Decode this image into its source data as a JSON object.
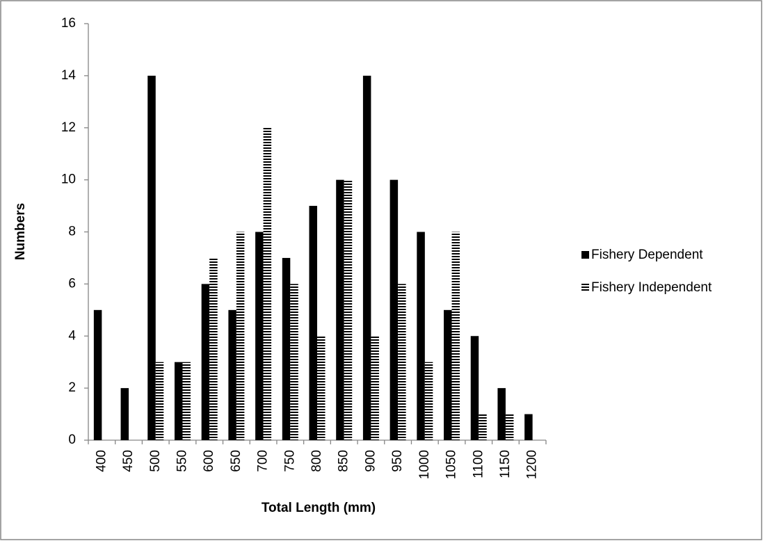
{
  "chart_data": {
    "type": "bar",
    "x_label": "Total Length (mm)",
    "y_label": "Numbers",
    "categories": [
      "400",
      "450",
      "500",
      "550",
      "600",
      "650",
      "700",
      "750",
      "800",
      "850",
      "900",
      "950",
      "1000",
      "1050",
      "1100",
      "1150",
      "1200"
    ],
    "series": [
      {
        "name": "Fishery Dependent",
        "color": "#000000",
        "pattern": "solid",
        "values": [
          5,
          2,
          14,
          3,
          6,
          5,
          8,
          7,
          9,
          10,
          14,
          10,
          8,
          5,
          4,
          2,
          1
        ]
      },
      {
        "name": "Fishery Independent",
        "color": "#000000",
        "pattern": "horizontal-lines",
        "values": [
          0,
          0,
          3,
          3,
          7,
          8,
          12,
          6,
          4,
          10,
          4,
          6,
          3,
          8,
          1,
          1,
          0
        ]
      }
    ],
    "ylim": [
      0,
      16
    ],
    "yticks": [
      0,
      2,
      4,
      6,
      8,
      10,
      12,
      14,
      16
    ],
    "grid": false,
    "legend": "right"
  }
}
